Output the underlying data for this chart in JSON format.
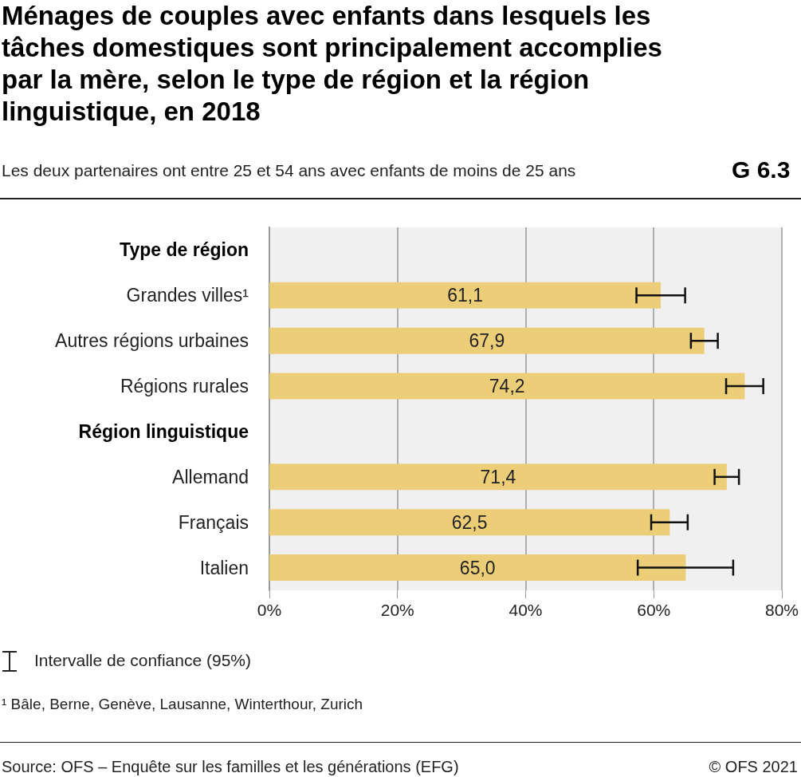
{
  "chart_data": {
    "type": "bar",
    "orientation": "horizontal",
    "title": "Ménages de couples avec enfants dans lesquels les tâches domestiques sont principalement accomplies par la mère, selon le type de région et la région linguistique, en 2018",
    "subtitle": "Les deux partenaires ont entre 25 et 54 ans avec enfants de moins de 25 ans",
    "categories": [
      "Type de région",
      "Grandes villes¹",
      "Autres régions urbaines",
      "Régions rurales",
      "Région linguistique",
      "Allemand",
      "Français",
      "Italien"
    ],
    "values": [
      null,
      61.1,
      67.9,
      74.2,
      null,
      71.4,
      62.5,
      65.0
    ],
    "value_labels": [
      null,
      "61,1",
      "67,9",
      "74,2",
      null,
      "71,4",
      "62,5",
      "65,0"
    ],
    "errors": [
      null,
      [
        57.3,
        64.9
      ],
      [
        65.8,
        70.0
      ],
      [
        71.3,
        77.1
      ],
      null,
      [
        69.5,
        73.3
      ],
      [
        59.6,
        65.3
      ],
      [
        57.5,
        72.4
      ]
    ],
    "color": "#edce78",
    "xlim": [
      0,
      80
    ],
    "xticks": [
      {
        "value": 0,
        "label": "0%"
      },
      {
        "value": 20,
        "label": "20%"
      },
      {
        "value": 40,
        "label": "40%"
      },
      {
        "value": 60,
        "label": "60%"
      },
      {
        "value": 80,
        "label": "80%"
      }
    ],
    "grid": "x",
    "annotations": [
      "G 6.3",
      "Intervalle de confiance (95%)",
      "¹ Bâle, Berne, Genève, Lausanne, Winterthour, Zurich",
      "Source: OFS – Enquête sur les familles et les générations (EFG)",
      "© OFS 2021"
    ]
  }
}
